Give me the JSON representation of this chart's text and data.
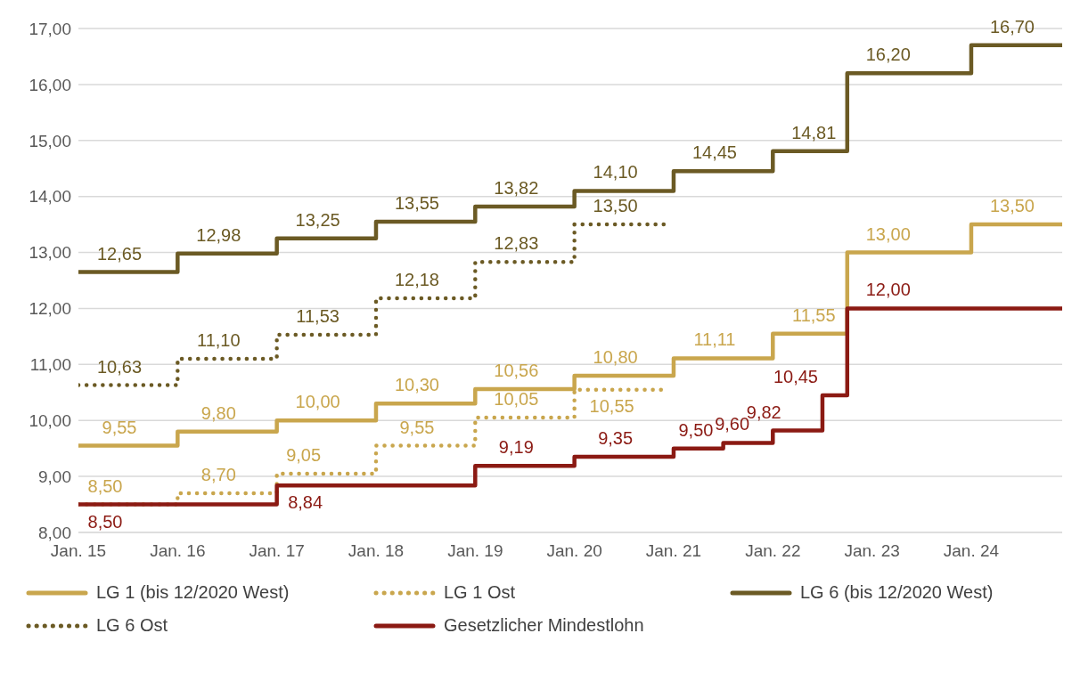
{
  "chart_data": {
    "type": "step",
    "xlim": [
      "2015-01",
      "2024-12"
    ],
    "xticks": [
      {
        "value": "2015-01",
        "label": "Jan. 15"
      },
      {
        "value": "2016-01",
        "label": "Jan. 16"
      },
      {
        "value": "2017-01",
        "label": "Jan. 17"
      },
      {
        "value": "2018-01",
        "label": "Jan. 18"
      },
      {
        "value": "2019-01",
        "label": "Jan. 19"
      },
      {
        "value": "2020-01",
        "label": "Jan. 20"
      },
      {
        "value": "2021-01",
        "label": "Jan. 21"
      },
      {
        "value": "2022-01",
        "label": "Jan. 22"
      },
      {
        "value": "2023-01",
        "label": "Jan. 23"
      },
      {
        "value": "2024-01",
        "label": "Jan. 24"
      }
    ],
    "ylim": [
      8,
      17
    ],
    "yticks": [
      {
        "value": 8,
        "label": "8,00"
      },
      {
        "value": 9,
        "label": "9,00"
      },
      {
        "value": 10,
        "label": "10,00"
      },
      {
        "value": 11,
        "label": "11,00"
      },
      {
        "value": 12,
        "label": "12,00"
      },
      {
        "value": 13,
        "label": "13,00"
      },
      {
        "value": 14,
        "label": "14,00"
      },
      {
        "value": 15,
        "label": "15,00"
      },
      {
        "value": 16,
        "label": "16,00"
      },
      {
        "value": 17,
        "label": "17,00"
      }
    ],
    "grid": "y",
    "legend": "bottom",
    "marker": "none",
    "series": [
      {
        "name": "LG 1 (bis 12/2020 West)",
        "color": "#c9a64d",
        "line_style": "solid",
        "x": [
          "2015-01",
          "2016-01",
          "2017-01",
          "2018-01",
          "2019-01",
          "2020-01",
          "2021-01",
          "2022-01",
          "2022-10",
          "2024-01",
          "2024-12"
        ],
        "values": [
          9.55,
          9.8,
          10.0,
          10.3,
          10.56,
          10.8,
          11.11,
          11.55,
          13.0,
          13.5,
          13.5
        ],
        "value_labels": [
          "9,55",
          "9,80",
          "10,00",
          "10,30",
          "10,56",
          "10,80",
          "11,11",
          "11,55",
          "13,00",
          "13,50",
          null
        ]
      },
      {
        "name": "LG 1 Ost",
        "color": "#c9a64d",
        "line_style": "dotted",
        "x": [
          "2015-01",
          "2016-01",
          "2017-01",
          "2018-01",
          "2019-01",
          "2020-01",
          "2020-12"
        ],
        "values": [
          8.5,
          8.7,
          9.05,
          9.55,
          10.05,
          10.55,
          10.55
        ],
        "value_labels": [
          "8,50",
          "8,70",
          "9,05",
          "9,55",
          "10,05",
          "10,55",
          null
        ]
      },
      {
        "name": "LG 6 (bis 12/2020 West)",
        "color": "#6b5a24",
        "line_style": "solid",
        "x": [
          "2015-01",
          "2016-01",
          "2017-01",
          "2018-01",
          "2019-01",
          "2020-01",
          "2021-01",
          "2022-01",
          "2022-10",
          "2024-01",
          "2024-12"
        ],
        "values": [
          12.65,
          12.98,
          13.25,
          13.55,
          13.82,
          14.1,
          14.45,
          14.81,
          16.2,
          16.7,
          16.7
        ],
        "value_labels": [
          "12,65",
          "12,98",
          "13,25",
          "13,55",
          "13,82",
          "14,10",
          "14,45",
          "14,81",
          "16,20",
          "16,70",
          null
        ]
      },
      {
        "name": "LG 6 Ost",
        "color": "#6b5a24",
        "line_style": "dotted",
        "x": [
          "2015-01",
          "2016-01",
          "2017-01",
          "2018-01",
          "2019-01",
          "2020-01",
          "2020-12"
        ],
        "values": [
          10.63,
          11.1,
          11.53,
          12.18,
          12.83,
          13.5,
          13.5
        ],
        "value_labels": [
          "10,63",
          "11,10",
          "11,53",
          "12,18",
          "12,83",
          "13,50",
          null
        ]
      },
      {
        "name": "Gesetzlicher Mindestlohn",
        "color": "#8b1a13",
        "line_style": "solid",
        "x": [
          "2015-01",
          "2017-01",
          "2019-01",
          "2020-01",
          "2021-01",
          "2021-07",
          "2022-01",
          "2022-07",
          "2022-10",
          "2024-12"
        ],
        "values": [
          8.5,
          8.84,
          9.19,
          9.35,
          9.5,
          9.6,
          9.82,
          10.45,
          12.0,
          12.0
        ],
        "value_labels": [
          "8,50",
          "8,84",
          "9,19",
          "9,35",
          "9,50",
          "9,60",
          "9,82",
          "10,45",
          "12,00",
          null
        ]
      }
    ]
  }
}
